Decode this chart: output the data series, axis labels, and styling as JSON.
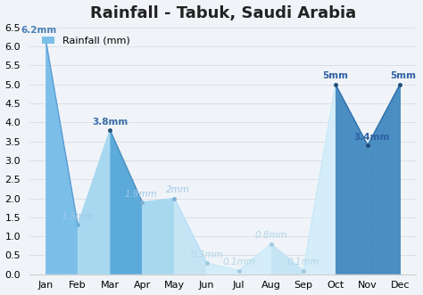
{
  "title": "Rainfall - Tabuk, Saudi Arabia",
  "legend_label": "Rainfall (mm)",
  "months": [
    "Jan",
    "Feb",
    "Mar",
    "Apr",
    "May",
    "Jun",
    "Jul",
    "Aug",
    "Sep",
    "Oct",
    "Nov",
    "Dec"
  ],
  "values": [
    6.2,
    1.3,
    3.8,
    1.9,
    2.0,
    0.3,
    0.1,
    0.8,
    0.1,
    5.0,
    3.4,
    5.0
  ],
  "labels": [
    "6.2mm",
    "1.3mm",
    "3.8mm",
    "1.9mm",
    "2mm",
    "0.3mm",
    "0.1mm",
    "0.8mm",
    "0.1mm",
    "5mm",
    "3.4mm",
    "5mm"
  ],
  "ylim": [
    0,
    6.5
  ],
  "yticks": [
    0.0,
    0.5,
    1.0,
    1.5,
    2.0,
    2.5,
    3.0,
    3.5,
    4.0,
    4.5,
    5.0,
    5.5,
    6.0,
    6.5
  ],
  "fill_colors": [
    "#7BBFE8",
    "#A8D8F0",
    "#5BAADA",
    "#A8D8F0",
    "#C5E5F5",
    "#D5EDF8",
    "#D5EDF8",
    "#C5E5F5",
    "#D5EDF8",
    "#4A8EC2",
    "#4A8EC2",
    "#4A8EC2"
  ],
  "line_colors": [
    "#5B9BD5",
    "#A8D8F0",
    "#4A8EC2",
    "#A8D8F0",
    "#B8DDF5",
    "#C8EAF8",
    "#C8EAF8",
    "#C0E4F5",
    "#C8EAF8",
    "#2E6FAA",
    "#2E6FAA",
    "#2E6FAA"
  ],
  "label_colors": [
    "#4A7FB5",
    "#A0C8E8",
    "#3A6EA5",
    "#A0C8E8",
    "#A0C8E8",
    "#B0D5E8",
    "#B0D5E8",
    "#B0D5E8",
    "#B0D5E8",
    "#2E5FA3",
    "#2E5FA3",
    "#2E5FA3"
  ],
  "label_bold": [
    true,
    false,
    true,
    false,
    false,
    false,
    false,
    false,
    false,
    true,
    true,
    true
  ],
  "label_offsets_x": [
    -0.22,
    0.0,
    0.0,
    -0.05,
    0.12,
    0.0,
    0.0,
    0.0,
    0.0,
    0.0,
    0.12,
    0.1
  ],
  "label_offsets_y": [
    0.1,
    0.1,
    0.1,
    0.1,
    0.1,
    0.1,
    0.1,
    0.1,
    0.1,
    0.1,
    0.1,
    0.1
  ],
  "background_color": "#f0f4f8",
  "plot_bg_color": "#f0f4f8",
  "title_fontsize": 13,
  "label_fontsize": 7.5,
  "tick_fontsize": 8
}
